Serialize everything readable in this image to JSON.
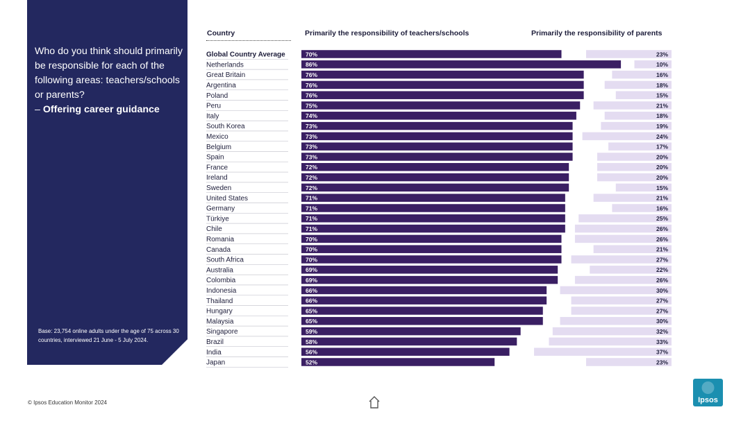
{
  "question": {
    "text": "Who do you think should primarily be responsible for each of the following areas: teachers/schools or parents?",
    "topic_prefix": "– ",
    "topic": "Offering career guidance"
  },
  "base_note": "Base: 23,754 online adults under the age of 75 across 30 countries, interviewed 21 June - 5 July 2024.",
  "footer": {
    "copyright": "© Ipsos Education Monitor 2024"
  },
  "logo": {
    "text": "Ipsos"
  },
  "colors": {
    "panel": "#23285f",
    "teachers_bar": "#3a1f63",
    "parents_bar": "#e4dcf1",
    "logo": "#1b8fb0"
  },
  "chart_data": {
    "type": "bar",
    "orientation": "horizontal",
    "title": "Offering career guidance",
    "column_headers": {
      "country": "Country",
      "teachers": "Primarily the responsibility of teachers/schools",
      "parents": "Primarily the responsibility of parents"
    },
    "categories": [
      "Global Country Average",
      "Netherlands",
      "Great Britain",
      "Argentina",
      "Poland",
      "Peru",
      "Italy",
      "South Korea",
      "Mexico",
      "Belgium",
      "Spain",
      "France",
      "Ireland",
      "Sweden",
      "United States",
      "Germany",
      "Türkiye",
      "Chile",
      "Romania",
      "Canada",
      "South Africa",
      "Australia",
      "Colombia",
      "Indonesia",
      "Thailand",
      "Hungary",
      "Malaysia",
      "Singapore",
      "Brazil",
      "India",
      "Japan"
    ],
    "series": [
      {
        "name": "Primarily the responsibility of teachers/schools",
        "values": [
          70,
          86,
          76,
          76,
          76,
          75,
          74,
          73,
          73,
          73,
          73,
          72,
          72,
          72,
          71,
          71,
          71,
          71,
          70,
          70,
          70,
          69,
          69,
          66,
          66,
          65,
          65,
          59,
          58,
          56,
          52
        ]
      },
      {
        "name": "Primarily the responsibility of parents",
        "values": [
          23,
          10,
          16,
          18,
          15,
          21,
          18,
          19,
          24,
          17,
          20,
          20,
          20,
          15,
          21,
          16,
          25,
          26,
          26,
          21,
          27,
          22,
          26,
          30,
          27,
          27,
          30,
          32,
          33,
          37,
          23
        ]
      }
    ],
    "value_suffix": "%",
    "xlim": [
      0,
      100
    ]
  }
}
